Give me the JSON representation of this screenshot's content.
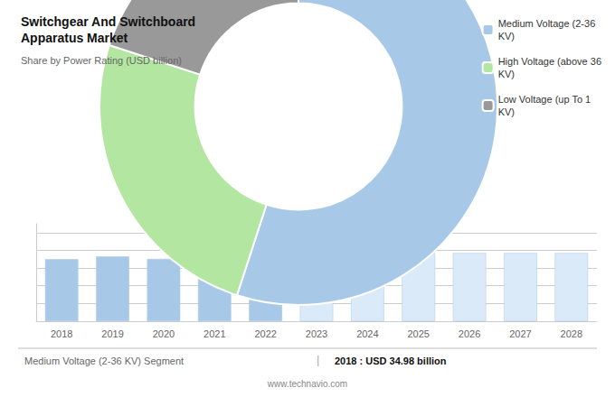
{
  "chart_data": [
    {
      "type": "pie",
      "title": "Switchgear And Switchboard\nApparatus Market",
      "subtitle": "Share by Power Rating (USD billion)",
      "categories": [
        "Medium Voltage (2-36\nKV)",
        "High Voltage (above 36\nKV)",
        "Low Voltage (up To 1\nKV)"
      ],
      "values": [
        0.55,
        0.25,
        0.2
      ],
      "colors": [
        "#a8c8e8",
        "#b3e6a0",
        "#999999"
      ],
      "legend": "upper right",
      "data_labels": false
    },
    {
      "type": "bar",
      "categories": [
        "2018",
        "2019",
        "2020",
        "2021",
        "2022",
        "2023",
        "2024",
        "2025",
        "2026",
        "2027",
        "2028"
      ],
      "values": [
        34.98,
        36.5,
        35.2,
        36.8,
        38.5,
        38.5,
        38.5,
        38.5,
        38.5,
        38.5,
        38.5
      ],
      "colors": [
        "#a8c8e8",
        "#a8c8e8",
        "#a8c8e8",
        "#a8c8e8",
        "#a8c8e8",
        "#dbeaf8",
        "#dbeaf8",
        "#dbeaf8",
        "#dbeaf8",
        "#dbeaf8",
        "#dbeaf8"
      ],
      "ylim": [
        0,
        55
      ],
      "yticks": [
        0,
        10,
        20,
        30,
        40,
        50
      ],
      "grid": true,
      "tick_labels": "x",
      "data_labels": false,
      "annotations": [
        "Medium Voltage (2-36 KV) Segment",
        "|",
        "2018 : USD 34.98 billion",
        "www.technavio.com"
      ]
    }
  ]
}
